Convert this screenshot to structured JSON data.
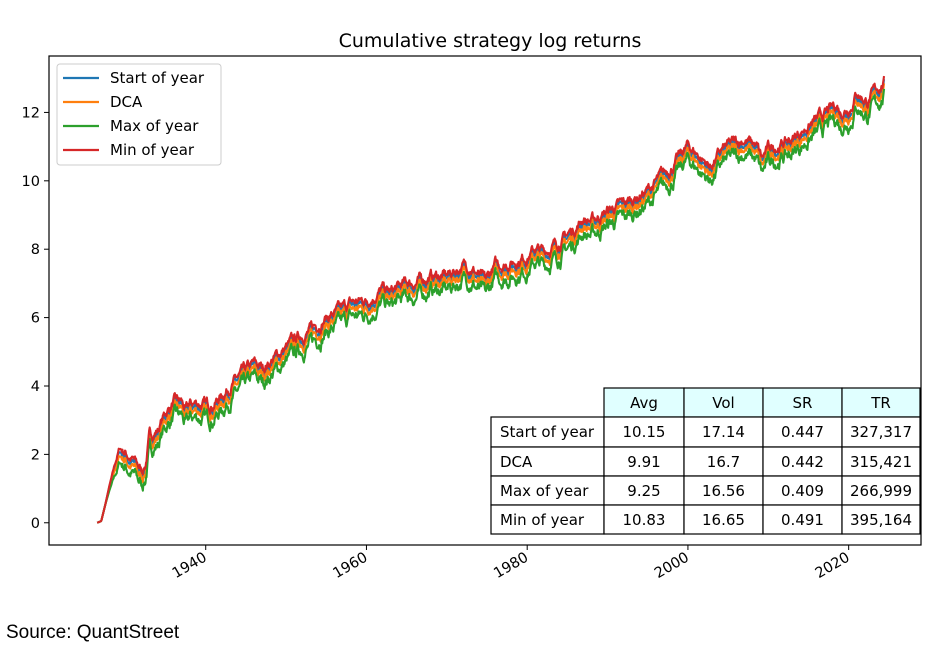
{
  "chart_data": {
    "type": "line",
    "title": "Cumulative strategy log returns",
    "xlabel": "",
    "ylabel": "",
    "xlim": [
      1920.5,
      2029
    ],
    "ylim": [
      -0.65,
      13.65
    ],
    "x_ticks": [
      "1940",
      "1960",
      "1980",
      "2000",
      "2020"
    ],
    "y_ticks": [
      "0",
      "2",
      "4",
      "6",
      "8",
      "10",
      "12"
    ],
    "legend_position": "top-left",
    "grid": false,
    "anchor_years": [
      1926.5,
      1927,
      1928,
      1929.3,
      1930,
      1931,
      1932,
      1932.5,
      1933,
      1934,
      1935,
      1936,
      1937,
      1937.5,
      1938,
      1939,
      1940,
      1941,
      1942,
      1943,
      1945,
      1946,
      1947,
      1948,
      1950,
      1952,
      1953,
      1955,
      1957,
      1958,
      1960,
      1962,
      1963,
      1965,
      1966,
      1968,
      1970,
      1972,
      1973,
      1974,
      1974.8,
      1976,
      1978,
      1980,
      1981,
      1982,
      1984,
      1986,
      1987,
      1988,
      1990,
      1992,
      1995,
      1998,
      2000,
      2001,
      2002.8,
      2004,
      2005,
      2007,
      2008.5,
      2009.2,
      2010,
      2013,
      2015,
      2017,
      2018.5,
      2019,
      2020.3,
      2021,
      2022.3,
      2023,
      2024.4
    ],
    "series": [
      {
        "name": "Start of year",
        "color": "#1f77b4",
        "offset": 0.12,
        "values": [
          0,
          0.05,
          1.0,
          1.95,
          1.85,
          1.6,
          1.3,
          1.5,
          2.3,
          2.5,
          3.0,
          3.3,
          3.3,
          3.0,
          3.2,
          3.3,
          3.2,
          3.3,
          3.5,
          3.8,
          4.2,
          4.4,
          4.3,
          4.5,
          4.9,
          5.3,
          5.4,
          5.8,
          6.0,
          6.2,
          6.3,
          6.6,
          6.5,
          6.8,
          6.8,
          7.0,
          7.0,
          7.3,
          7.3,
          7.0,
          6.8,
          7.3,
          7.4,
          7.6,
          7.8,
          7.7,
          8.0,
          8.4,
          8.7,
          8.6,
          8.9,
          9.1,
          9.5,
          10.2,
          10.8,
          10.6,
          10.2,
          10.6,
          10.8,
          11.0,
          10.8,
          10.4,
          10.7,
          11.0,
          11.4,
          11.7,
          12.0,
          11.8,
          12.0,
          12.4,
          12.1,
          12.3,
          12.7
        ]
      },
      {
        "name": "DCA",
        "color": "#ff7f0e",
        "offset": 0.0,
        "values": [
          0,
          0.05,
          1.0,
          1.95,
          1.85,
          1.6,
          1.3,
          1.5,
          2.3,
          2.5,
          3.0,
          3.3,
          3.3,
          3.0,
          3.2,
          3.3,
          3.2,
          3.3,
          3.5,
          3.8,
          4.2,
          4.4,
          4.3,
          4.5,
          4.9,
          5.3,
          5.4,
          5.8,
          6.0,
          6.2,
          6.3,
          6.6,
          6.5,
          6.8,
          6.8,
          7.0,
          7.0,
          7.3,
          7.3,
          7.0,
          6.8,
          7.3,
          7.4,
          7.6,
          7.8,
          7.7,
          8.0,
          8.4,
          8.7,
          8.6,
          8.9,
          9.1,
          9.5,
          10.2,
          10.8,
          10.6,
          10.2,
          10.6,
          10.8,
          11.0,
          10.8,
          10.4,
          10.7,
          11.0,
          11.4,
          11.7,
          12.0,
          11.8,
          12.0,
          12.4,
          12.1,
          12.3,
          12.7
        ]
      },
      {
        "name": "Max of year",
        "color": "#2ca02c",
        "offset": -0.2,
        "values": [
          0,
          0.05,
          1.0,
          1.95,
          1.85,
          1.6,
          1.3,
          1.5,
          2.3,
          2.5,
          3.0,
          3.3,
          3.3,
          3.0,
          3.2,
          3.3,
          3.2,
          3.3,
          3.5,
          3.8,
          4.2,
          4.4,
          4.3,
          4.5,
          4.9,
          5.3,
          5.4,
          5.8,
          6.0,
          6.2,
          6.3,
          6.6,
          6.5,
          6.8,
          6.8,
          7.0,
          7.0,
          7.3,
          7.3,
          7.0,
          6.8,
          7.3,
          7.4,
          7.6,
          7.8,
          7.7,
          8.0,
          8.4,
          8.7,
          8.6,
          8.9,
          9.1,
          9.5,
          10.2,
          10.8,
          10.6,
          10.2,
          10.6,
          10.8,
          11.0,
          10.8,
          10.4,
          10.7,
          11.0,
          11.4,
          11.7,
          12.0,
          11.8,
          12.0,
          12.4,
          12.1,
          12.3,
          12.7
        ]
      },
      {
        "name": "Min of year",
        "color": "#d62728",
        "offset": 0.22,
        "values": [
          0,
          0.05,
          1.0,
          1.95,
          1.85,
          1.6,
          1.3,
          1.5,
          2.3,
          2.5,
          3.0,
          3.3,
          3.3,
          3.0,
          3.2,
          3.3,
          3.2,
          3.3,
          3.5,
          3.8,
          4.2,
          4.4,
          4.3,
          4.5,
          4.9,
          5.3,
          5.4,
          5.8,
          6.0,
          6.2,
          6.3,
          6.6,
          6.5,
          6.8,
          6.8,
          7.0,
          7.0,
          7.3,
          7.3,
          7.0,
          6.8,
          7.3,
          7.4,
          7.6,
          7.8,
          7.7,
          8.0,
          8.4,
          8.7,
          8.6,
          8.9,
          9.1,
          9.5,
          10.2,
          10.8,
          10.6,
          10.2,
          10.6,
          10.8,
          11.0,
          10.8,
          10.4,
          10.7,
          11.0,
          11.4,
          11.7,
          12.0,
          11.8,
          12.0,
          12.4,
          12.1,
          12.3,
          12.7
        ]
      }
    ],
    "table": {
      "columns": [
        "Avg",
        "Vol",
        "SR",
        "TR"
      ],
      "header_color": "#e0ffff",
      "rows": [
        {
          "label": "Start of year",
          "cells": [
            "10.15",
            "17.14",
            "0.447",
            "327,317"
          ]
        },
        {
          "label": "DCA",
          "cells": [
            "9.91",
            "16.7",
            "0.442",
            "315,421"
          ]
        },
        {
          "label": "Max of year",
          "cells": [
            "9.25",
            "16.56",
            "0.409",
            "266,999"
          ]
        },
        {
          "label": "Min of year",
          "cells": [
            "10.83",
            "16.65",
            "0.491",
            "395,164"
          ]
        }
      ]
    }
  },
  "source": "Source: QuantStreet"
}
